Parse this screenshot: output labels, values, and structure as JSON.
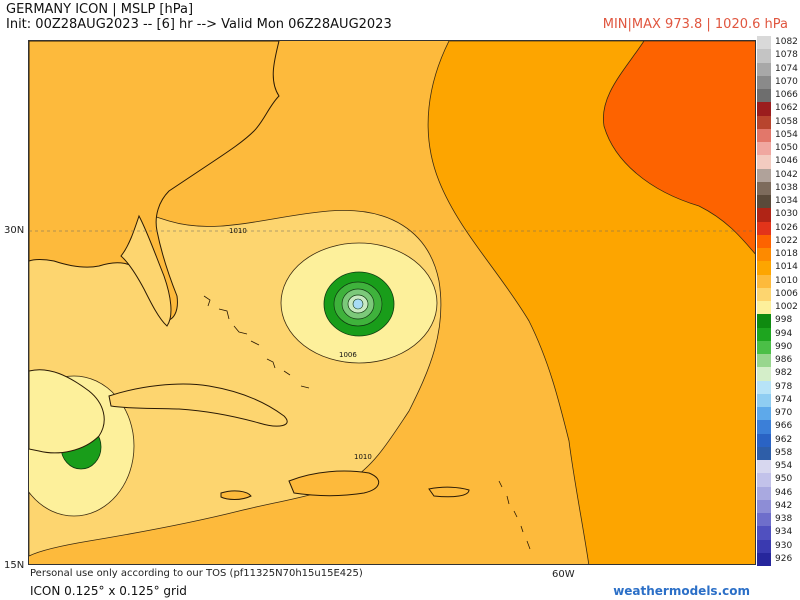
{
  "header": {
    "title_line1": "GERMANY ICON | MSLP [hPa]",
    "title_line2": "Init: 00Z28AUG2023 -- [6] hr --> Valid Mon 06Z28AUG2023",
    "minmax": "MIN|MAX 973.8 | 1020.6 hPa"
  },
  "map": {
    "lat_labels": [
      "30N",
      "15N"
    ],
    "lon_labels": [
      "60W"
    ],
    "contour_labels": [
      "1010",
      "1006",
      "1010"
    ],
    "colors": {
      "c1018": "#fda500",
      "c1014": "#fdba3c",
      "c1010": "#fdd56f",
      "c1006": "#fdf09b",
      "c1002": "#199d1a",
      "c1022": "#fd6300",
      "ocean_low_eye": "#a8dcf5"
    }
  },
  "footer": {
    "note": "Personal use only according to our TOS (pf11325N70h15u15E425)",
    "grid": "ICON 0.125° x 0.125° grid",
    "brand": "weathermodels.com"
  },
  "legend": {
    "items": [
      {
        "label": "1082",
        "color": "#d9d9d9"
      },
      {
        "label": "1078",
        "color": "#c4c4c4"
      },
      {
        "label": "1074",
        "color": "#a8a8a8"
      },
      {
        "label": "1070",
        "color": "#8a8a8a"
      },
      {
        "label": "1066",
        "color": "#6e6e6e"
      },
      {
        "label": "1062",
        "color": "#9b1d1d"
      },
      {
        "label": "1058",
        "color": "#b8452e"
      },
      {
        "label": "1054",
        "color": "#e2776a"
      },
      {
        "label": "1050",
        "color": "#f0a7a0"
      },
      {
        "label": "1046",
        "color": "#f3cbc0"
      },
      {
        "label": "1042",
        "color": "#b0a29a"
      },
      {
        "label": "1038",
        "color": "#7d6b5c"
      },
      {
        "label": "1034",
        "color": "#5a4a3a"
      },
      {
        "label": "1030",
        "color": "#b02416"
      },
      {
        "label": "1026",
        "color": "#e2341a"
      },
      {
        "label": "1022",
        "color": "#fd6300"
      },
      {
        "label": "1018",
        "color": "#fd8a00"
      },
      {
        "label": "1014",
        "color": "#fda500"
      },
      {
        "label": "1010",
        "color": "#fdba3c"
      },
      {
        "label": "1006",
        "color": "#fdd56f"
      },
      {
        "label": "1002",
        "color": "#fdf09b"
      },
      {
        "label": "998",
        "color": "#0f8a10"
      },
      {
        "label": "994",
        "color": "#1ea51f"
      },
      {
        "label": "990",
        "color": "#4bbf47"
      },
      {
        "label": "986",
        "color": "#98d68e"
      },
      {
        "label": "982",
        "color": "#d4eec9"
      },
      {
        "label": "978",
        "color": "#b7e3f7"
      },
      {
        "label": "974",
        "color": "#8fcdf2"
      },
      {
        "label": "970",
        "color": "#5ea9ea"
      },
      {
        "label": "966",
        "color": "#3b7fd8"
      },
      {
        "label": "962",
        "color": "#2a63c4"
      },
      {
        "label": "958",
        "color": "#2e5ea8"
      },
      {
        "label": "954",
        "color": "#d7d7ef"
      },
      {
        "label": "950",
        "color": "#c2c2ea"
      },
      {
        "label": "946",
        "color": "#a9a9e0"
      },
      {
        "label": "942",
        "color": "#8d8dd6"
      },
      {
        "label": "938",
        "color": "#6e6ecb"
      },
      {
        "label": "934",
        "color": "#5050bf"
      },
      {
        "label": "930",
        "color": "#3a3ab0"
      },
      {
        "label": "926",
        "color": "#26269c"
      }
    ]
  }
}
